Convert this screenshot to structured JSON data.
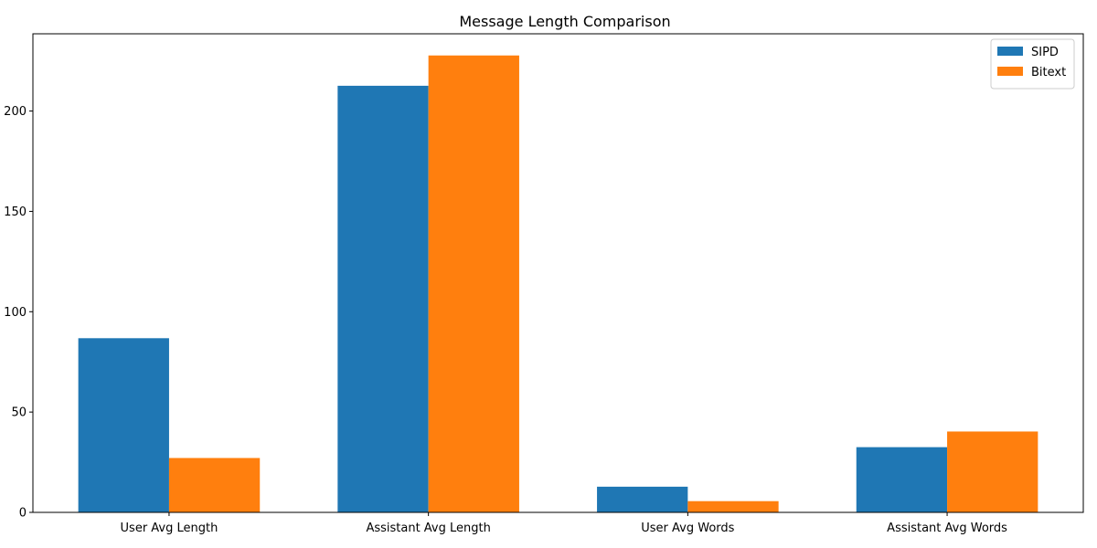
{
  "chart_data": {
    "type": "bar",
    "title": "Message Length Comparison",
    "xlabel": "",
    "ylabel": "",
    "categories": [
      "User Avg Length",
      "Assistant Avg Length",
      "User Avg Words",
      "Assistant Avg Words"
    ],
    "series": [
      {
        "name": "SIPD",
        "values": [
          86.8,
          212.6,
          12.8,
          32.5
        ],
        "color": "#1f77b4"
      },
      {
        "name": "Bitext",
        "values": [
          27.1,
          227.7,
          5.6,
          40.3
        ],
        "color": "#ff7f0e"
      }
    ],
    "ylim": [
      0,
      238.5
    ],
    "yticks": [
      0,
      50,
      100,
      150,
      200
    ],
    "grid": false,
    "legend": "top-right"
  }
}
